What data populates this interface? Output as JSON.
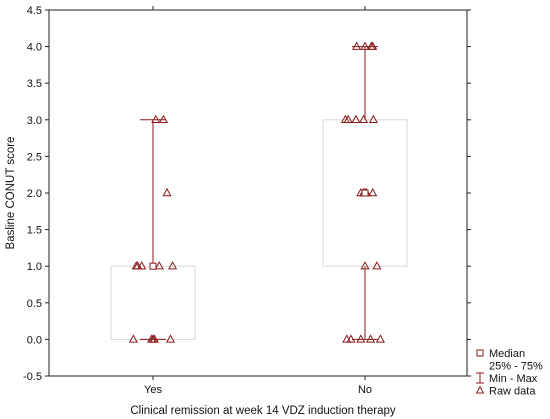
{
  "chart_data": {
    "type": "box",
    "xlabel": "Clinical remission at week 14 VDZ induction therapy",
    "ylabel": "Basline CONUT score",
    "ylim": [
      -0.5,
      4.5
    ],
    "yticks": [
      "-0.5",
      "0.0",
      "0.5",
      "1.0",
      "1.5",
      "2.0",
      "2.5",
      "3.0",
      "3.5",
      "4.0",
      "4.5"
    ],
    "ytick_values": [
      -0.5,
      0.0,
      0.5,
      1.0,
      1.5,
      2.0,
      2.5,
      3.0,
      3.5,
      4.0,
      4.5
    ],
    "grid": false,
    "legend_position": "bottom-right, outside plot",
    "categories": [
      "Yes",
      "No"
    ],
    "groups": [
      {
        "name": "Yes",
        "median": 1.0,
        "q1": 0.0,
        "q3": 1.0,
        "min": 0.0,
        "max": 3.0,
        "raw": [
          {
            "x_offset": -0.28,
            "y": 0.0
          },
          {
            "x_offset": -0.02,
            "y": 0.0
          },
          {
            "x_offset": 0.0,
            "y": 0.0
          },
          {
            "x_offset": 0.02,
            "y": 0.0
          },
          {
            "x_offset": 0.25,
            "y": 0.0
          },
          {
            "x_offset": -0.24,
            "y": 1.0
          },
          {
            "x_offset": -0.22,
            "y": 1.0
          },
          {
            "x_offset": -0.16,
            "y": 1.0
          },
          {
            "x_offset": 0.09,
            "y": 1.0
          },
          {
            "x_offset": 0.28,
            "y": 1.0
          },
          {
            "x_offset": 0.2,
            "y": 2.0
          },
          {
            "x_offset": 0.04,
            "y": 3.0
          },
          {
            "x_offset": 0.15,
            "y": 3.0
          }
        ]
      },
      {
        "name": "No",
        "median": 2.0,
        "q1": 1.0,
        "q3": 3.0,
        "min": 0.0,
        "max": 4.0,
        "raw": [
          {
            "x_offset": -0.26,
            "y": 0.0
          },
          {
            "x_offset": -0.2,
            "y": 0.0
          },
          {
            "x_offset": -0.06,
            "y": 0.0
          },
          {
            "x_offset": 0.08,
            "y": 0.0
          },
          {
            "x_offset": 0.22,
            "y": 0.0
          },
          {
            "x_offset": 0.0,
            "y": 1.0
          },
          {
            "x_offset": 0.17,
            "y": 1.0
          },
          {
            "x_offset": -0.06,
            "y": 2.0
          },
          {
            "x_offset": -0.02,
            "y": 2.0
          },
          {
            "x_offset": 0.0,
            "y": 2.0
          },
          {
            "x_offset": 0.02,
            "y": 2.0
          },
          {
            "x_offset": 0.11,
            "y": 2.0
          },
          {
            "x_offset": -0.28,
            "y": 3.0
          },
          {
            "x_offset": -0.24,
            "y": 3.0
          },
          {
            "x_offset": -0.13,
            "y": 3.0
          },
          {
            "x_offset": -0.02,
            "y": 3.0
          },
          {
            "x_offset": 0.12,
            "y": 3.0
          },
          {
            "x_offset": -0.12,
            "y": 4.0
          },
          {
            "x_offset": 0.0,
            "y": 4.0
          },
          {
            "x_offset": 0.09,
            "y": 4.0
          },
          {
            "x_offset": 0.11,
            "y": 4.0
          }
        ]
      }
    ],
    "legend": [
      {
        "label": "Median",
        "symbol": "square"
      },
      {
        "label": "25% - 75%",
        "symbol": "box"
      },
      {
        "label": "Min - Max",
        "symbol": "whisker"
      },
      {
        "label": "Raw data",
        "symbol": "triangle"
      }
    ],
    "colors": {
      "marker": "#8b1a1a",
      "box_edge": "#d8d8d8",
      "axis": "#222222"
    }
  }
}
